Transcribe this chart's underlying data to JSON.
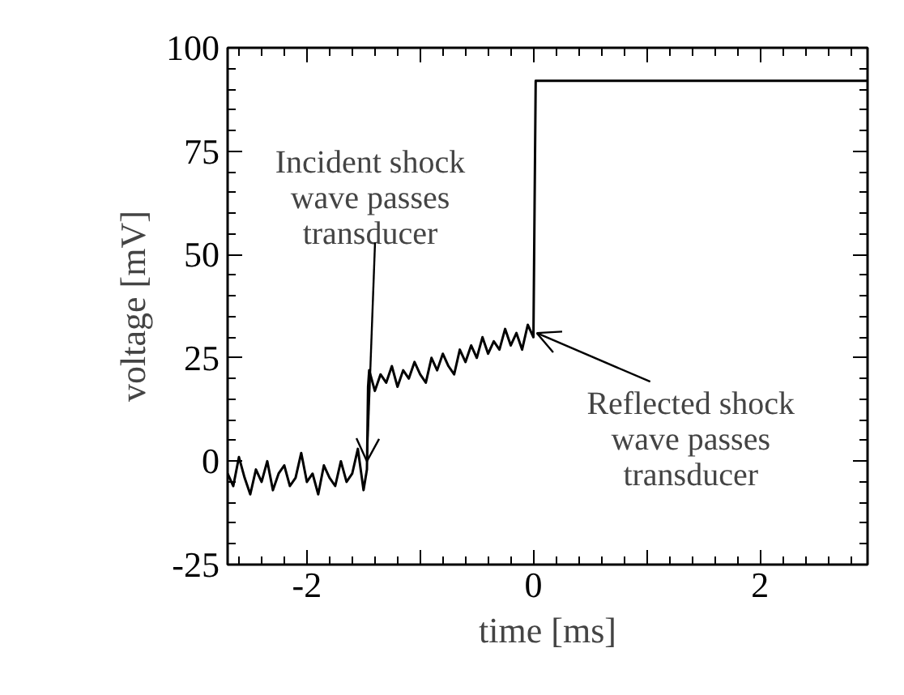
{
  "chart_data": {
    "type": "line",
    "xlabel": "time [ms]",
    "ylabel": "voltage [mV]",
    "xlim": [
      -2.7,
      2.95
    ],
    "ylim": [
      -25,
      100
    ],
    "xticks": [
      -2,
      {
        "value": -1,
        "label": null
      },
      0,
      {
        "value": 1,
        "label": null
      },
      2
    ],
    "yticks": [
      -25,
      0,
      25,
      50,
      75,
      100
    ],
    "grid": false,
    "line_style": "solid",
    "marker": "none",
    "series": [
      {
        "color": "#000000",
        "x": [
          -2.7,
          -2.65,
          -2.6,
          -2.55,
          -2.5,
          -2.45,
          -2.4,
          -2.35,
          -2.3,
          -2.25,
          -2.2,
          -2.15,
          -2.1,
          -2.05,
          -2.0,
          -1.95,
          -1.9,
          -1.85,
          -1.8,
          -1.75,
          -1.7,
          -1.65,
          -1.6,
          -1.55,
          -1.5,
          -1.47,
          -1.46,
          -1.45,
          -1.4,
          -1.35,
          -1.3,
          -1.25,
          -1.2,
          -1.15,
          -1.1,
          -1.05,
          -1.0,
          -0.95,
          -0.9,
          -0.85,
          -0.8,
          -0.75,
          -0.7,
          -0.65,
          -0.6,
          -0.55,
          -0.5,
          -0.45,
          -0.4,
          -0.35,
          -0.3,
          -0.25,
          -0.2,
          -0.15,
          -0.1,
          -0.05,
          0.0,
          0.02,
          2.95
        ],
        "values": [
          -3,
          -6,
          1,
          -4,
          -8,
          -2,
          -5,
          0,
          -7,
          -3,
          -1,
          -6,
          -4,
          2,
          -5,
          -3,
          -8,
          -1,
          -4,
          -6,
          0,
          -5,
          -3,
          3,
          -7,
          -2,
          18,
          22,
          17,
          21,
          19,
          23,
          18,
          22,
          20,
          24,
          21,
          19,
          25,
          22,
          26,
          23,
          21,
          27,
          24,
          28,
          25,
          30,
          26,
          29,
          27,
          32,
          28,
          31,
          27,
          33,
          30,
          92,
          92
        ]
      }
    ],
    "annotations": [
      {
        "text": "Incident shock\nwave passes\ntransducer",
        "x": -1.47,
        "y": 0
      },
      {
        "text": "Reflected shock\nwave passes\ntransducer",
        "x": 0.03,
        "y": 31
      }
    ]
  }
}
